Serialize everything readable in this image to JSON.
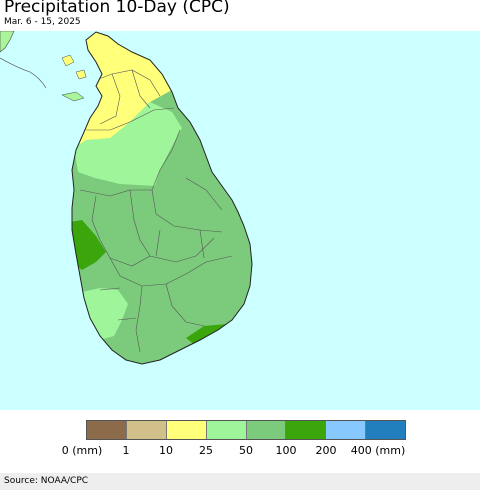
{
  "header": {
    "title": "Precipitation 10-Day (CPC)",
    "subtitle": "Mar. 6 - 15, 2025"
  },
  "map": {
    "region": "Sri Lanka",
    "ocean_color": "#ccffff",
    "land_outside_color": "#aaf59a",
    "boundary_color": "#444444"
  },
  "legend": {
    "bins": [
      {
        "label": "0 (mm)",
        "color": "#8b6b4a"
      },
      {
        "label": "1",
        "color": "#d2c08a"
      },
      {
        "label": "10",
        "color": "#ffff7a"
      },
      {
        "label": "25",
        "color": "#9ef59a"
      },
      {
        "label": "50",
        "color": "#7ccb7c"
      },
      {
        "label": "100",
        "color": "#3aa60c"
      },
      {
        "label": "200",
        "color": "#87c8ff"
      },
      {
        "label": "400 (mm)",
        "color": "#217fbd"
      }
    ]
  },
  "footer": {
    "source": "Source: NOAA/CPC"
  }
}
